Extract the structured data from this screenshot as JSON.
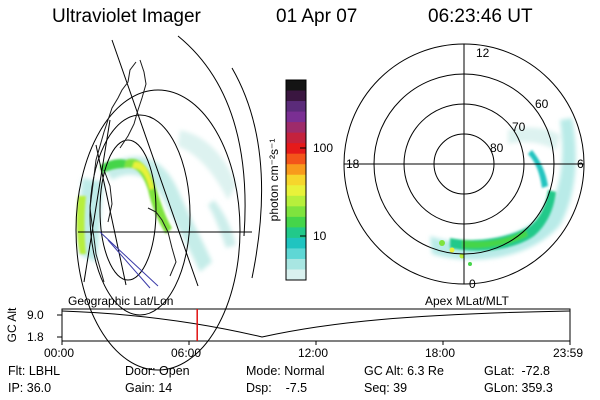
{
  "header": {
    "instrument": "Ultraviolet Imager",
    "date": "01 Apr 07",
    "time": "06:23:46 UT"
  },
  "colorbar": {
    "unit_label": "photon cm⁻²s⁻¹",
    "ticks": [
      "100",
      "10"
    ],
    "colors": [
      "#141414",
      "#3a1640",
      "#5b2b7a",
      "#7a2f93",
      "#9e2b6a",
      "#c4223d",
      "#e51a1a",
      "#f3551a",
      "#f89a1c",
      "#f6d62c",
      "#e8f23a",
      "#b7ef3c",
      "#7fe33e",
      "#45d54a",
      "#22c98a",
      "#20c4c0",
      "#5fd7d5",
      "#a8e6e2",
      "#d9f1ef"
    ]
  },
  "polar_plot": {
    "mlt_labels": {
      "top": "12",
      "left": "18",
      "right": "6",
      "bottom": "0"
    },
    "lat_labels": [
      "60",
      "70",
      "80"
    ]
  },
  "plot_labels": {
    "left_panel": "Geographic Lat/Lon",
    "right_panel": "Apex MLat/MLT"
  },
  "altitude_plot": {
    "ylabel": "GC Alt",
    "yticks": [
      "9.0",
      "1.8"
    ],
    "xticks": [
      "00:00",
      "06:00",
      "12:00",
      "18:00",
      "23:59"
    ],
    "marker_time": "06:23",
    "marker_color": "#e01010"
  },
  "info": {
    "filter": "Flt: LBHL",
    "ip": "IP: 36.0",
    "door": "Door: Open",
    "gain": "Gain: 14",
    "mode": "Mode: Normal",
    "dsp": "Dsp:    -7.5",
    "gc_alt": "GC Alt: 6.3 Re",
    "seq": "Seq: 39",
    "glat": "GLat:  -72.8",
    "glon": "GLon: 359.3"
  }
}
